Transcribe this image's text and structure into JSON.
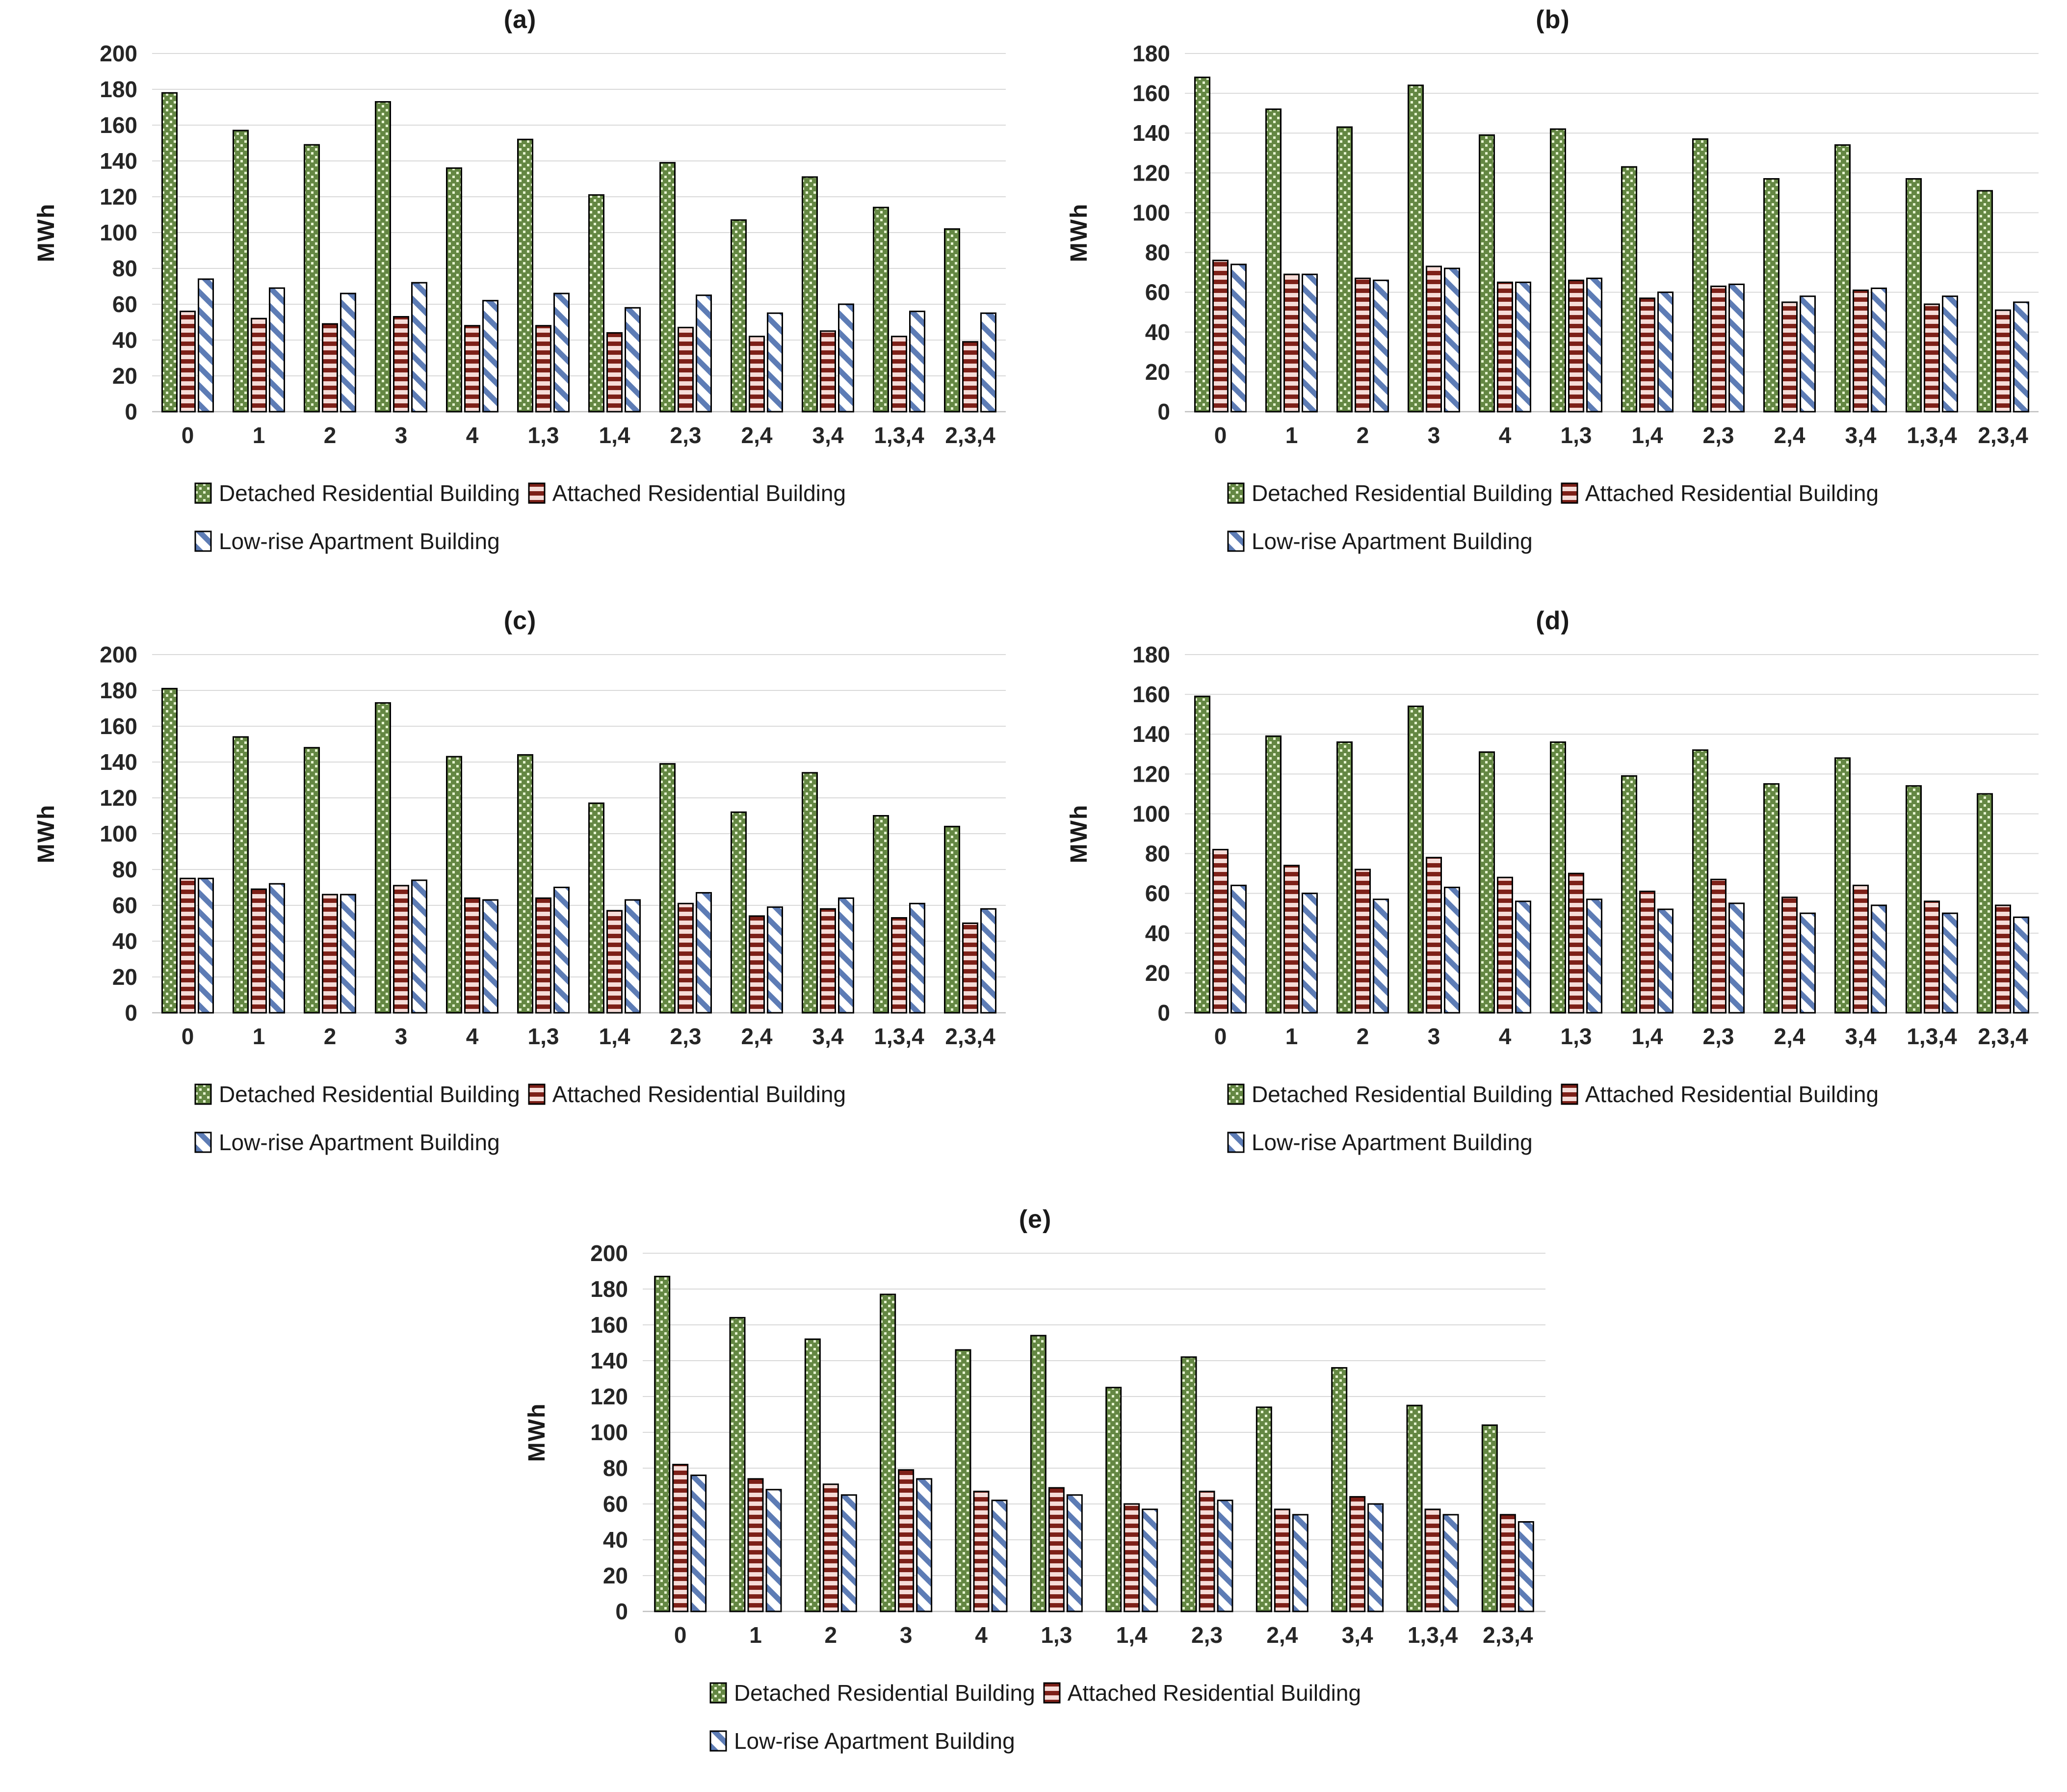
{
  "figure": {
    "background": "#ffffff",
    "unit": "MWh"
  },
  "colors": {
    "detached_base": "#648743",
    "detached_dot": "#e7f5d2",
    "attached_dark": "#7d2018",
    "attached_light": "#f6dcd8",
    "lowrise_stripe": "#5d7cb5",
    "lowrise_bg": "#ffffff",
    "bar_border": "#000000",
    "gridline": "#d9d9d9",
    "axis_line": "#bfbfbf",
    "text": "#262626"
  },
  "chart_data": [
    {
      "id": "a",
      "type": "bar",
      "title": "(a)",
      "ylabel": "MWh",
      "ylim": [
        0,
        200
      ],
      "ytick_step": 20,
      "grid": true,
      "legend_position": "bottom",
      "categories": [
        "0",
        "1",
        "2",
        "3",
        "4",
        "1,3",
        "1,4",
        "2,3",
        "2,4",
        "3,4",
        "1,3,4",
        "2,3,4"
      ],
      "series": [
        {
          "name": "Detached Residential Building",
          "values": [
            178,
            157,
            149,
            173,
            136,
            152,
            121,
            139,
            107,
            131,
            114,
            102
          ]
        },
        {
          "name": "Attached Residential Building",
          "values": [
            56,
            52,
            49,
            53,
            48,
            48,
            44,
            47,
            42,
            45,
            42,
            39
          ]
        },
        {
          "name": "Low-rise Apartment Building",
          "values": [
            74,
            69,
            66,
            72,
            62,
            66,
            58,
            65,
            55,
            60,
            56,
            55
          ]
        }
      ]
    },
    {
      "id": "b",
      "type": "bar",
      "title": "(b)",
      "ylabel": "MWh",
      "ylim": [
        0,
        180
      ],
      "ytick_step": 20,
      "grid": true,
      "legend_position": "bottom",
      "categories": [
        "0",
        "1",
        "2",
        "3",
        "4",
        "1,3",
        "1,4",
        "2,3",
        "2,4",
        "3,4",
        "1,3,4",
        "2,3,4"
      ],
      "series": [
        {
          "name": "Detached Residential Building",
          "values": [
            168,
            152,
            143,
            164,
            139,
            142,
            123,
            137,
            117,
            134,
            117,
            111
          ]
        },
        {
          "name": "Attached Residential Building",
          "values": [
            76,
            69,
            67,
            73,
            65,
            66,
            57,
            63,
            55,
            61,
            54,
            51
          ]
        },
        {
          "name": "Low-rise Apartment Building",
          "values": [
            74,
            69,
            66,
            72,
            65,
            67,
            60,
            64,
            58,
            62,
            58,
            55
          ]
        }
      ]
    },
    {
      "id": "c",
      "type": "bar",
      "title": "(c)",
      "ylabel": "MWh",
      "ylim": [
        0,
        200
      ],
      "ytick_step": 20,
      "grid": true,
      "legend_position": "bottom",
      "categories": [
        "0",
        "1",
        "2",
        "3",
        "4",
        "1,3",
        "1,4",
        "2,3",
        "2,4",
        "3,4",
        "1,3,4",
        "2,3,4"
      ],
      "series": [
        {
          "name": "Detached Residential Building",
          "values": [
            181,
            154,
            148,
            173,
            143,
            144,
            117,
            139,
            112,
            134,
            110,
            104
          ]
        },
        {
          "name": "Attached Residential Building",
          "values": [
            75,
            69,
            66,
            71,
            64,
            64,
            57,
            61,
            54,
            58,
            53,
            50
          ]
        },
        {
          "name": "Low-rise Apartment Building",
          "values": [
            75,
            72,
            66,
            74,
            63,
            70,
            63,
            67,
            59,
            64,
            61,
            58
          ]
        }
      ]
    },
    {
      "id": "d",
      "type": "bar",
      "title": "(d)",
      "ylabel": "MWh",
      "ylim": [
        0,
        180
      ],
      "ytick_step": 20,
      "grid": true,
      "legend_position": "bottom",
      "categories": [
        "0",
        "1",
        "2",
        "3",
        "4",
        "1,3",
        "1,4",
        "2,3",
        "2,4",
        "3,4",
        "1,3,4",
        "2,3,4"
      ],
      "series": [
        {
          "name": "Detached Residential Building",
          "values": [
            159,
            139,
            136,
            154,
            131,
            136,
            119,
            132,
            115,
            128,
            114,
            110
          ]
        },
        {
          "name": "Attached Residential Building",
          "values": [
            82,
            74,
            72,
            78,
            68,
            70,
            61,
            67,
            58,
            64,
            56,
            54
          ]
        },
        {
          "name": "Low-rise Apartment Building",
          "values": [
            64,
            60,
            57,
            63,
            56,
            57,
            52,
            55,
            50,
            54,
            50,
            48
          ]
        }
      ]
    },
    {
      "id": "e",
      "type": "bar",
      "title": "(e)",
      "ylabel": "MWh",
      "ylim": [
        0,
        200
      ],
      "ytick_step": 20,
      "grid": true,
      "legend_position": "bottom",
      "categories": [
        "0",
        "1",
        "2",
        "3",
        "4",
        "1,3",
        "1,4",
        "2,3",
        "2,4",
        "3,4",
        "1,3,4",
        "2,3,4"
      ],
      "series": [
        {
          "name": "Detached Residential Building",
          "values": [
            187,
            164,
            152,
            177,
            146,
            154,
            125,
            142,
            114,
            136,
            115,
            104
          ]
        },
        {
          "name": "Attached Residential Building",
          "values": [
            82,
            74,
            71,
            79,
            67,
            69,
            60,
            67,
            57,
            64,
            57,
            54
          ]
        },
        {
          "name": "Low-rise Apartment Building",
          "values": [
            76,
            68,
            65,
            74,
            62,
            65,
            57,
            62,
            54,
            60,
            54,
            50
          ]
        }
      ]
    }
  ]
}
